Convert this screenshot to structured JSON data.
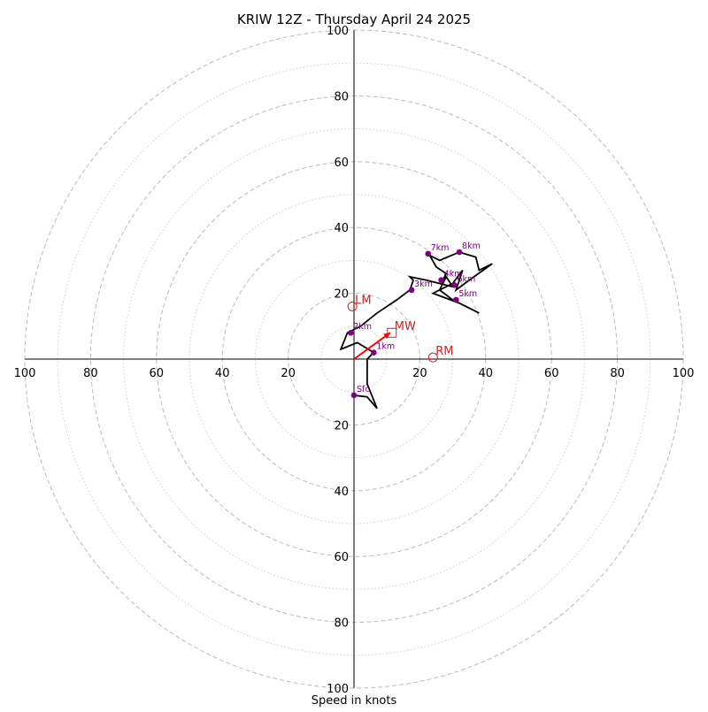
{
  "chart_data": {
    "type": "hodograph",
    "title": "KRIW 12Z - Thursday April 24 2025",
    "xlabel": "Speed in knots",
    "ylabel": "",
    "xlim": [
      -100,
      100
    ],
    "ylim": [
      -100,
      100
    ],
    "rings": [
      {
        "speed": 10,
        "style": "dotted"
      },
      {
        "speed": 20,
        "style": "dashed"
      },
      {
        "speed": 30,
        "style": "dotted"
      },
      {
        "speed": 40,
        "style": "dashed"
      },
      {
        "speed": 50,
        "style": "dotted"
      },
      {
        "speed": 60,
        "style": "dashed"
      },
      {
        "speed": 70,
        "style": "dotted"
      },
      {
        "speed": 80,
        "style": "dashed"
      },
      {
        "speed": 90,
        "style": "dotted"
      },
      {
        "speed": 100,
        "style": "dashed"
      }
    ],
    "x_ticks": [
      {
        "value": -100,
        "label": "100"
      },
      {
        "value": -80,
        "label": "80"
      },
      {
        "value": -60,
        "label": "60"
      },
      {
        "value": -40,
        "label": "40"
      },
      {
        "value": -20,
        "label": "20"
      },
      {
        "value": 20,
        "label": "20"
      },
      {
        "value": 40,
        "label": "40"
      },
      {
        "value": 60,
        "label": "60"
      },
      {
        "value": 80,
        "label": "80"
      },
      {
        "value": 100,
        "label": "100"
      }
    ],
    "y_ticks": [
      {
        "value": 100,
        "label": "100"
      },
      {
        "value": 80,
        "label": "80"
      },
      {
        "value": 60,
        "label": "60"
      },
      {
        "value": 40,
        "label": "40"
      },
      {
        "value": 20,
        "label": "20"
      },
      {
        "value": -20,
        "label": "20"
      },
      {
        "value": -40,
        "label": "40"
      },
      {
        "value": -60,
        "label": "60"
      },
      {
        "value": -80,
        "label": "80"
      },
      {
        "value": -100,
        "label": "100"
      }
    ],
    "trace": [
      [
        0,
        -11
      ],
      [
        4,
        -11.5
      ],
      [
        7,
        -15
      ],
      [
        4,
        -7.5
      ],
      [
        4,
        0
      ],
      [
        6,
        2
      ],
      [
        1,
        5
      ],
      [
        -4,
        3
      ],
      [
        -2,
        8
      ],
      [
        2,
        10
      ],
      [
        7,
        14
      ],
      [
        13,
        18
      ],
      [
        17,
        21
      ],
      [
        18,
        24
      ],
      [
        17,
        25
      ],
      [
        22,
        24
      ],
      [
        26,
        23
      ],
      [
        30,
        22
      ],
      [
        28,
        25
      ],
      [
        26,
        21
      ],
      [
        24,
        20
      ],
      [
        32,
        17
      ],
      [
        38,
        14
      ],
      [
        30,
        18
      ],
      [
        26,
        21
      ],
      [
        30,
        23
      ],
      [
        33,
        27
      ],
      [
        31,
        21
      ],
      [
        35,
        24
      ],
      [
        42,
        29
      ],
      [
        38,
        27
      ],
      [
        37,
        31
      ],
      [
        32,
        32.5
      ],
      [
        26,
        30
      ],
      [
        23,
        31.5
      ],
      [
        25,
        28
      ],
      [
        28,
        26
      ],
      [
        27,
        24
      ]
    ],
    "markers": [
      {
        "label": "Sfc",
        "u": 0,
        "v": -11
      },
      {
        "label": "1km",
        "u": 6,
        "v": 2
      },
      {
        "label": "2km",
        "u": -1,
        "v": 8
      },
      {
        "label": "3km",
        "u": 17.5,
        "v": 21
      },
      {
        "label": "4km",
        "u": 26.5,
        "v": 24
      },
      {
        "label": "5km",
        "u": 31,
        "v": 18
      },
      {
        "label": "6km",
        "u": 30.5,
        "v": 22.5
      },
      {
        "label": "7km",
        "u": 22.5,
        "v": 32
      },
      {
        "label": "8km",
        "u": 32,
        "v": 32.5
      }
    ],
    "storm_motion": [
      {
        "label": "LM",
        "u": -0.5,
        "v": 16,
        "symbol": "circle"
      },
      {
        "label": "RM",
        "u": 24,
        "v": 0.5,
        "symbol": "circle"
      },
      {
        "label": "MW",
        "u": 11.5,
        "v": 8,
        "symbol": "square"
      }
    ],
    "shear_vector": {
      "from": [
        0,
        0
      ],
      "to": [
        11,
        8
      ]
    },
    "colors": {
      "trace": "#000000",
      "markers": "#800080",
      "storm_motion": "#cc2222",
      "shear_arrow": "#ff0000",
      "rings": "#bbbbbb",
      "axes": "#000000"
    }
  }
}
